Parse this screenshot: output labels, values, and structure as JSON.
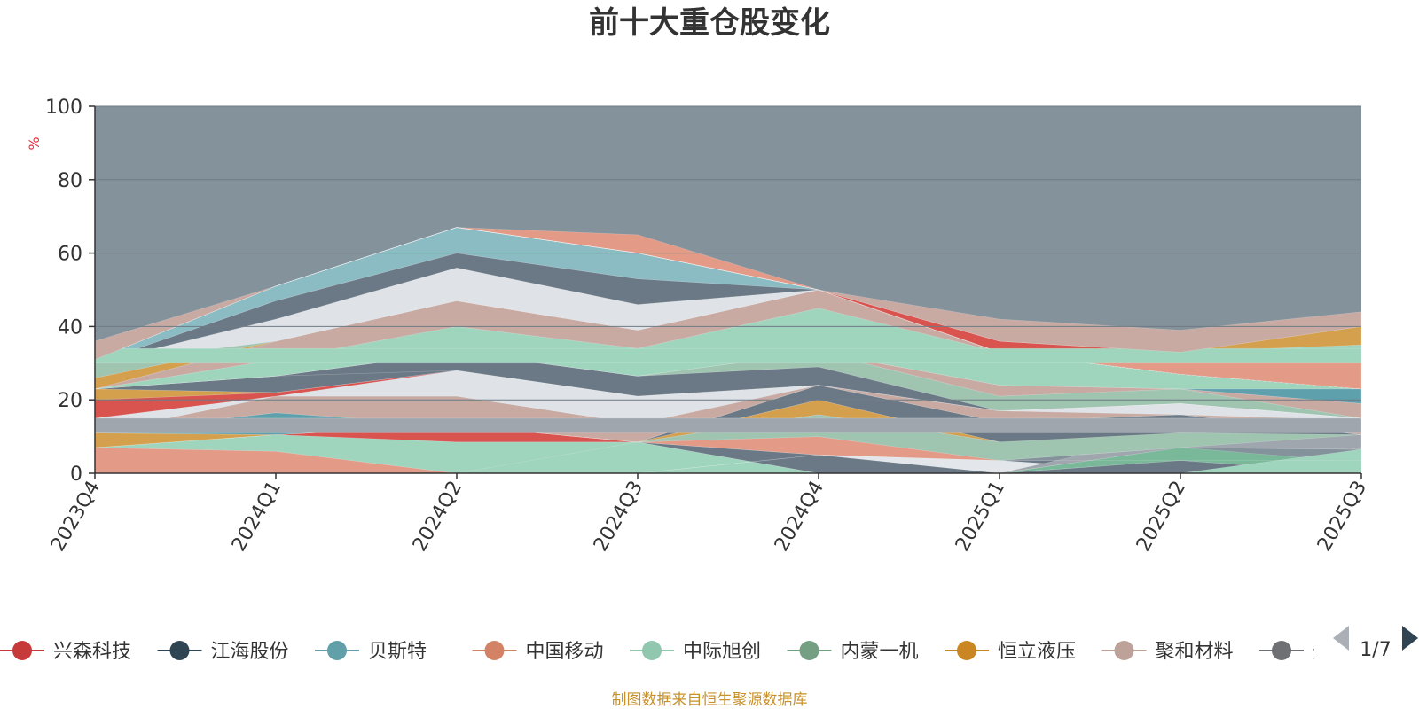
{
  "chart_data": {
    "type": "area",
    "title": "前十大重仓股变化",
    "ylabel": "%",
    "ylim": [
      0,
      100
    ],
    "yticks": [
      0,
      20,
      40,
      60,
      80,
      100
    ],
    "grid": true,
    "categories": [
      "2023Q4",
      "2024Q1",
      "2024Q2",
      "2024Q3",
      "2024Q4",
      "2025Q1",
      "2025Q2",
      "2025Q3"
    ],
    "bands": [
      {
        "color": "#d9534f",
        "lower": [
          0,
          0,
          0,
          0,
          0,
          0,
          0,
          0
        ],
        "upper": [
          4,
          0,
          0,
          0,
          0,
          0,
          0,
          0
        ]
      },
      {
        "color": "#5fa0ad",
        "lower": [
          4,
          0,
          0,
          0,
          0,
          0,
          0,
          0
        ],
        "upper": [
          7,
          0,
          0,
          0,
          0,
          0,
          0,
          0
        ]
      },
      {
        "color": "#e39a86",
        "lower": [
          0,
          0,
          0,
          0,
          0,
          0,
          0,
          0
        ],
        "upper": [
          7,
          6,
          0,
          0,
          0,
          0,
          0,
          0
        ]
      },
      {
        "color": "#9fd4bd",
        "lower": [
          7,
          6,
          0,
          0,
          0,
          0,
          0,
          0
        ],
        "upper": [
          7,
          10.5,
          8.5,
          8.5,
          0,
          0,
          0,
          0
        ]
      },
      {
        "color": "#6b7986",
        "lower": [
          0,
          0,
          0,
          8.5,
          0,
          0,
          0,
          0
        ],
        "upper": [
          0,
          0,
          0,
          8.5,
          5,
          3.5,
          3.5,
          0
        ]
      },
      {
        "color": "#dfe3e8",
        "lower": [
          0,
          0,
          0,
          0,
          5,
          3.5,
          0,
          0
        ],
        "upper": [
          0,
          0,
          0,
          0,
          5,
          3.5,
          0,
          0
        ]
      },
      {
        "color": "#e3e7ec",
        "lower": [
          0,
          0,
          0,
          0,
          5,
          0,
          0,
          0
        ],
        "upper": [
          0,
          0,
          0,
          0,
          5,
          3.5,
          0,
          0
        ]
      },
      {
        "color": "#6b7986",
        "lower": [
          0,
          0,
          0,
          0,
          0,
          0,
          0,
          0
        ],
        "upper": [
          0,
          0,
          0,
          0,
          0,
          0,
          3.5,
          0
        ]
      },
      {
        "color": "#7ab89a",
        "lower": [
          0,
          0,
          0,
          0,
          0,
          0,
          3.5,
          0
        ],
        "upper": [
          0,
          0,
          0,
          0,
          0,
          0,
          7,
          3
        ]
      },
      {
        "color": "#9fd4bd",
        "lower": [
          0,
          0,
          0,
          0,
          0,
          0,
          0,
          0
        ],
        "upper": [
          0,
          0,
          0,
          0,
          0,
          0,
          0,
          6.5
        ]
      },
      {
        "color": "#a0a6ae",
        "lower": [
          0,
          0,
          0,
          0,
          0,
          0,
          7,
          6.5
        ],
        "upper": [
          0,
          0,
          0,
          0,
          0,
          0,
          11,
          10.5
        ]
      },
      {
        "color": "#d9534f",
        "lower": [
          7,
          10.5,
          8.5,
          8.5,
          5,
          3.5,
          3.5,
          3.5
        ],
        "upper": [
          7,
          10.5,
          13,
          8.5,
          5,
          3.5,
          3.5,
          3.5
        ]
      },
      {
        "color": "#e39a86",
        "lower": [
          7,
          10.5,
          13,
          8.5,
          5,
          3.5,
          7,
          6.5
        ],
        "upper": [
          7,
          10.5,
          13,
          8.5,
          10,
          3.5,
          7,
          6.5
        ]
      },
      {
        "color": "#9fc4b0",
        "lower": [
          7,
          10.5,
          13,
          8.5,
          10,
          3.5,
          7,
          10.5
        ],
        "upper": [
          7,
          10.5,
          13,
          8.5,
          16,
          8.5,
          16,
          10.5
        ]
      },
      {
        "color": "#d4a04e",
        "lower": [
          7,
          10.5,
          13,
          8.5,
          16,
          8.5,
          16,
          10.5
        ],
        "upper": [
          11,
          10.5,
          13,
          8.5,
          20,
          8.5,
          16,
          10.5
        ]
      },
      {
        "color": "#6b7986",
        "lower": [
          11,
          10.5,
          13,
          8.5,
          20,
          8.5,
          11,
          10.5
        ],
        "upper": [
          11,
          10.5,
          13,
          8.5,
          24,
          14,
          16,
          10.5
        ]
      },
      {
        "color": "#5fa0ad",
        "lower": [
          11,
          10.5,
          13,
          8.5,
          24,
          14,
          16,
          10.5
        ],
        "upper": [
          11,
          16.5,
          13,
          8.5,
          24,
          14,
          16,
          10.5
        ]
      },
      {
        "color": "#c8aaa2",
        "lower": [
          11,
          16.5,
          13,
          8.5,
          24,
          14,
          16,
          10.5
        ],
        "upper": [
          11,
          21,
          21,
          13.5,
          24,
          17,
          16,
          14.5
        ]
      },
      {
        "color": "#dfe3e8",
        "lower": [
          11,
          21,
          21,
          13.5,
          24,
          17,
          16,
          14.5
        ],
        "upper": [
          15,
          21,
          28,
          21,
          24,
          17,
          19,
          15
        ]
      },
      {
        "color": "#a0a6ae",
        "lower": [
          11,
          11,
          11,
          11,
          11,
          11,
          11,
          11
        ],
        "upper": [
          15,
          15,
          15,
          15,
          15,
          15,
          15,
          15
        ]
      },
      {
        "color": "#d9534f",
        "lower": [
          15,
          21,
          28,
          21,
          24,
          17,
          19,
          15
        ],
        "upper": [
          20,
          22,
          28,
          21,
          24,
          17,
          19,
          15
        ]
      },
      {
        "color": "#d4a04e",
        "lower": [
          20,
          22,
          28,
          21,
          24,
          17,
          19,
          15
        ],
        "upper": [
          23,
          22,
          28,
          21,
          24,
          17,
          19,
          15
        ]
      },
      {
        "color": "#6b7986",
        "lower": [
          23,
          22,
          28,
          21,
          24,
          17,
          19,
          15
        ],
        "upper": [
          23,
          26.5,
          33,
          26.5,
          29,
          17,
          19,
          15
        ]
      },
      {
        "color": "#dfe3e8",
        "lower": [
          23,
          26.5,
          28,
          21,
          24,
          17,
          19,
          15
        ],
        "upper": [
          23,
          26.5,
          28,
          21,
          24,
          17,
          19,
          15
        ]
      },
      {
        "color": "#9fc4b0",
        "lower": [
          23,
          26.5,
          33,
          26.5,
          29,
          17,
          19,
          15
        ],
        "upper": [
          23,
          26.5,
          33,
          26.5,
          33,
          21,
          23,
          15
        ]
      },
      {
        "color": "#c8aaa2",
        "lower": [
          23,
          26.5,
          33,
          26.5,
          33,
          21,
          23,
          15
        ],
        "upper": [
          23,
          26.5,
          33,
          26.5,
          33,
          24,
          23,
          19
        ]
      },
      {
        "color": "#5fa0ad",
        "lower": [
          23,
          26.5,
          33,
          26.5,
          33,
          24,
          23,
          19
        ],
        "upper": [
          23,
          26.5,
          33,
          26.5,
          33,
          24,
          23,
          23
        ]
      },
      {
        "color": "#9fd4bd",
        "lower": [
          23,
          26.5,
          33,
          26.5,
          33,
          24,
          23,
          23
        ],
        "upper": [
          23,
          31,
          40,
          34,
          45,
          33,
          27,
          23
        ]
      },
      {
        "color": "#c8aaa2",
        "lower": [
          23,
          31,
          40,
          34,
          45,
          33,
          27,
          23
        ],
        "upper": [
          23,
          36,
          47,
          39,
          50,
          33,
          27,
          23
        ]
      },
      {
        "color": "#d4a04e",
        "lower": [
          23,
          36,
          47,
          39,
          50,
          33,
          27,
          23
        ],
        "upper": [
          26,
          36,
          47,
          39,
          50,
          33,
          27,
          23
        ]
      },
      {
        "color": "#9fc4b0",
        "lower": [
          26,
          36,
          47,
          39,
          50,
          33,
          27,
          23
        ],
        "upper": [
          30,
          36,
          47,
          39,
          50,
          33,
          27,
          23
        ]
      },
      {
        "color": "#dfe3e8",
        "lower": [
          30,
          36,
          47,
          39,
          50,
          33,
          27,
          23
        ],
        "upper": [
          30,
          42,
          56,
          46,
          50,
          33,
          27,
          23
        ]
      },
      {
        "color": "#6b7986",
        "lower": [
          30,
          42,
          56,
          46,
          50,
          33,
          27,
          23
        ],
        "upper": [
          30,
          47,
          60,
          53,
          50,
          33,
          27,
          23
        ]
      },
      {
        "color": "#8bbcc4",
        "lower": [
          30,
          47,
          60,
          53,
          50,
          33,
          27,
          23
        ],
        "upper": [
          31,
          51,
          67,
          60,
          50,
          33,
          27,
          23
        ]
      },
      {
        "color": "#e39a86",
        "lower": [
          31,
          51,
          67,
          60,
          50,
          33,
          27,
          23
        ],
        "upper": [
          31,
          51,
          67,
          65,
          50,
          33,
          27,
          23
        ]
      },
      {
        "color": "#d9534f",
        "lower": [
          31,
          51,
          67,
          60,
          50,
          33,
          27,
          23
        ],
        "upper": [
          31,
          51,
          67,
          60,
          50,
          36,
          33,
          31
        ]
      },
      {
        "color": "#5fa0ad",
        "lower": [
          31,
          51,
          67,
          60,
          50,
          33,
          27,
          23
        ],
        "upper": [
          31,
          51,
          67,
          60,
          50,
          33,
          31,
          27
        ]
      },
      {
        "color": "#e39a86",
        "lower": [
          31,
          51,
          67,
          60,
          50,
          33,
          27,
          23
        ],
        "upper": [
          31,
          51,
          67,
          60,
          50,
          33,
          31,
          31
        ]
      },
      {
        "color": "#9fd4bd",
        "lower": [
          31,
          51,
          67,
          60,
          50,
          36,
          33,
          31
        ],
        "upper": [
          31,
          51,
          67,
          60,
          50,
          36,
          33,
          35
        ]
      },
      {
        "color": "#d4a04e",
        "lower": [
          31,
          51,
          67,
          60,
          50,
          36,
          33,
          35
        ],
        "upper": [
          31,
          51,
          67,
          60,
          50,
          36,
          33,
          40
        ]
      },
      {
        "color": "#9fd4bd",
        "lower": [
          30,
          30,
          30,
          30,
          30,
          30,
          30,
          30
        ],
        "upper": [
          34,
          34,
          34,
          34,
          34,
          34,
          34,
          34
        ]
      },
      {
        "color": "#c8aaa2",
        "lower": [
          31,
          51,
          67,
          60,
          50,
          36,
          33,
          40
        ],
        "upper": [
          36,
          51,
          67,
          60,
          50,
          42,
          39,
          44
        ]
      }
    ],
    "legend": [
      {
        "name": "兴森科技",
        "color": "#c73a3a"
      },
      {
        "name": "江海股份",
        "color": "#2f4554"
      },
      {
        "name": "贝斯特",
        "color": "#61a0a8"
      },
      {
        "name": "中国移动",
        "color": "#d48265"
      },
      {
        "name": "中际旭创",
        "color": "#91c7ae"
      },
      {
        "name": "内蒙一机",
        "color": "#749f83"
      },
      {
        "name": "恒立液压",
        "color": "#ca8622"
      },
      {
        "name": "聚和材料",
        "color": "#bda29a"
      },
      {
        "name": "天孚通信",
        "color": "#6e7074"
      }
    ],
    "legend_position": "bottom",
    "background_color": "#84929c",
    "pager": "1/7",
    "footer": "制图数据来自恒生聚源数据库"
  }
}
